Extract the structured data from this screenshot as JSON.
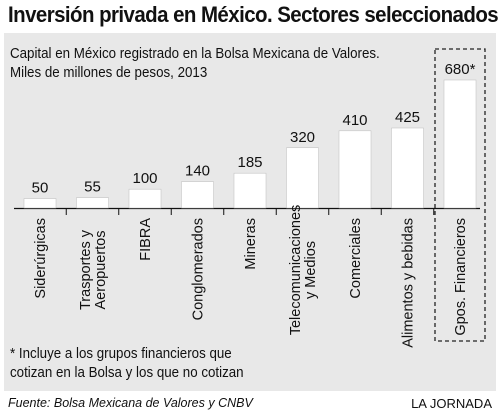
{
  "title": "Inversión privada en México. Sectores seleccionados",
  "subtitle_line1": "Capital en México registrado en la Bolsa Mexicana de Valores.",
  "subtitle_line2": "Miles de millones de pesos, 2013",
  "footnote_line1": "* Incluye a los grupos financieros que",
  "footnote_line2": "cotizan en la Bolsa y los que no cotizan",
  "source": "Fuente: Bolsa Mexicana de Valores y CNBV",
  "credit": "LA JORNADA",
  "colors": {
    "bar": "#ffffff",
    "panel": "#e8e8e8",
    "axis": "#111111"
  },
  "chart_data": {
    "type": "bar",
    "categories": [
      [
        "Siderúrgicas"
      ],
      [
        "Trasportes y",
        "Aeropuertos"
      ],
      [
        "FIBRA"
      ],
      [
        "Conglomerados"
      ],
      [
        "Mineras"
      ],
      [
        "Telecomunicaciones",
        "y Medios"
      ],
      [
        "Comerciales"
      ],
      [
        "Alimentos y bebidas"
      ],
      [
        "Gpos. Financieros"
      ]
    ],
    "values": [
      50,
      55,
      100,
      140,
      185,
      320,
      410,
      425,
      680
    ],
    "value_labels": [
      "50",
      "55",
      "100",
      "140",
      "185",
      "320",
      "410",
      "425",
      "680*"
    ],
    "highlighted_category_index": 8,
    "grid": false,
    "legend": "none"
  }
}
